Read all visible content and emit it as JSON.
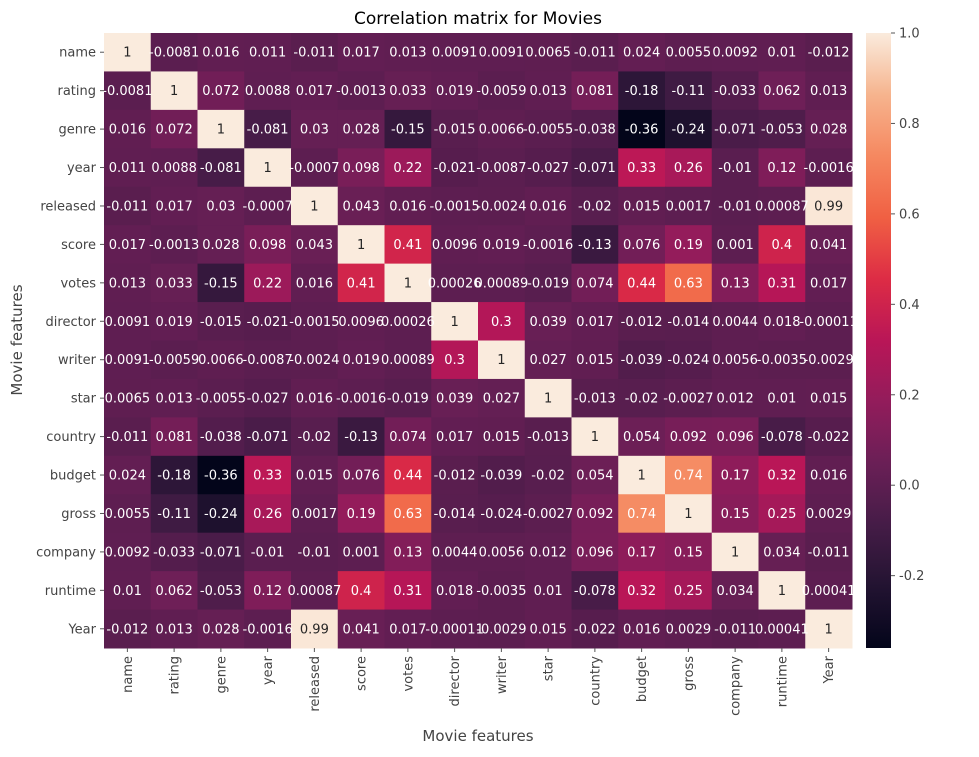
{
  "chart_data": {
    "type": "heatmap",
    "title": "Correlation matrix for Movies",
    "xlabel": "Movie features",
    "ylabel": "Movie features",
    "colormap": "rocket",
    "vrange": [
      -0.36,
      1
    ],
    "colorbar_ticks": [
      "-0.2",
      "0.0",
      "0.2",
      "0.4",
      "0.6",
      "0.8",
      "1.0"
    ],
    "colorbar_tick_values": [
      -0.2,
      0.0,
      0.2,
      0.4,
      0.6,
      0.8,
      1.0
    ],
    "labels": [
      "name",
      "rating",
      "genre",
      "year",
      "released",
      "score",
      "votes",
      "director",
      "writer",
      "star",
      "country",
      "budget",
      "gross",
      "company",
      "runtime",
      "Year"
    ],
    "matrix": [
      [
        "1",
        "-0.0081",
        "0.016",
        "0.011",
        "-0.011",
        "0.017",
        "0.013",
        "0.0091",
        "0.0091",
        "0.0065",
        "-0.011",
        "0.024",
        "0.0055",
        "0.0092",
        "0.01",
        "-0.012"
      ],
      [
        "-0.0081",
        "1",
        "0.072",
        "0.0088",
        "0.017",
        "-0.0013",
        "0.033",
        "0.019",
        "-0.0059",
        "0.013",
        "0.081",
        "-0.18",
        "-0.11",
        "-0.033",
        "0.062",
        "0.013"
      ],
      [
        "0.016",
        "0.072",
        "1",
        "-0.081",
        "0.03",
        "0.028",
        "-0.15",
        "-0.015",
        "0.0066",
        "-0.0055",
        "-0.038",
        "-0.36",
        "-0.24",
        "-0.071",
        "-0.053",
        "0.028"
      ],
      [
        "0.011",
        "0.0088",
        "-0.081",
        "1",
        "-0.0007",
        "0.098",
        "0.22",
        "-0.021",
        "-0.0087",
        "-0.027",
        "-0.071",
        "0.33",
        "0.26",
        "-0.01",
        "0.12",
        "-0.0016"
      ],
      [
        "-0.011",
        "0.017",
        "0.03",
        "-0.0007",
        "1",
        "0.043",
        "0.016",
        "-0.0015",
        "-0.0024",
        "0.016",
        "-0.02",
        "0.015",
        "0.0017",
        "-0.01",
        "0.00087",
        "0.99"
      ],
      [
        "0.017",
        "-0.0013",
        "0.028",
        "0.098",
        "0.043",
        "1",
        "0.41",
        "0.0096",
        "0.019",
        "-0.0016",
        "-0.13",
        "0.076",
        "0.19",
        "0.001",
        "0.4",
        "0.041"
      ],
      [
        "0.013",
        "0.033",
        "-0.15",
        "0.22",
        "0.016",
        "0.41",
        "1",
        "0.00026",
        "0.00089",
        "-0.019",
        "0.074",
        "0.44",
        "0.63",
        "0.13",
        "0.31",
        "0.017"
      ],
      [
        "0.0091",
        "0.019",
        "-0.015",
        "-0.021",
        "-0.0015",
        "0.0096",
        "0.00026",
        "1",
        "0.3",
        "0.039",
        "0.017",
        "-0.012",
        "-0.014",
        "0.0044",
        "0.018",
        "-0.00011"
      ],
      [
        "0.0091",
        "-0.0059",
        "0.0066",
        "-0.0087",
        "-0.0024",
        "0.019",
        "0.00089",
        "0.3",
        "1",
        "0.027",
        "0.015",
        "-0.039",
        "-0.024",
        "0.0056",
        "-0.0035",
        "-0.0029"
      ],
      [
        "0.0065",
        "0.013",
        "-0.0055",
        "-0.027",
        "0.016",
        "-0.0016",
        "-0.019",
        "0.039",
        "0.027",
        "1",
        "-0.013",
        "-0.02",
        "-0.0027",
        "0.012",
        "0.01",
        "0.015"
      ],
      [
        "-0.011",
        "0.081",
        "-0.038",
        "-0.071",
        "-0.02",
        "-0.13",
        "0.074",
        "0.017",
        "0.015",
        "-0.013",
        "1",
        "0.054",
        "0.092",
        "0.096",
        "-0.078",
        "-0.022"
      ],
      [
        "0.024",
        "-0.18",
        "-0.36",
        "0.33",
        "0.015",
        "0.076",
        "0.44",
        "-0.012",
        "-0.039",
        "-0.02",
        "0.054",
        "1",
        "0.74",
        "0.17",
        "0.32",
        "0.016"
      ],
      [
        "0.0055",
        "-0.11",
        "-0.24",
        "0.26",
        "0.0017",
        "0.19",
        "0.63",
        "-0.014",
        "-0.024",
        "-0.0027",
        "0.092",
        "0.74",
        "1",
        "0.15",
        "0.25",
        "0.0029"
      ],
      [
        "0.0092",
        "-0.033",
        "-0.071",
        "-0.01",
        "-0.01",
        "0.001",
        "0.13",
        "0.0044",
        "0.0056",
        "0.012",
        "0.096",
        "0.17",
        "0.15",
        "1",
        "0.034",
        "-0.011"
      ],
      [
        "0.01",
        "0.062",
        "-0.053",
        "0.12",
        "0.00087",
        "0.4",
        "0.31",
        "0.018",
        "-0.0035",
        "0.01",
        "-0.078",
        "0.32",
        "0.25",
        "0.034",
        "1",
        "0.00041"
      ],
      [
        "-0.012",
        "0.013",
        "0.028",
        "-0.0016",
        "0.99",
        "0.041",
        "0.017",
        "-0.00011",
        "-0.0029",
        "0.015",
        "-0.022",
        "0.016",
        "0.0029",
        "-0.011",
        "0.00041",
        "1"
      ]
    ]
  }
}
